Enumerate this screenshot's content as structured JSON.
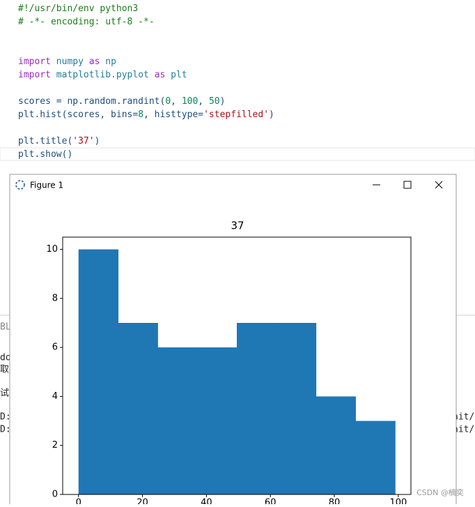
{
  "code": {
    "lines": [
      [
        {
          "text": "#!/usr/bin/env python3",
          "color": "#1a801a"
        }
      ],
      [
        {
          "text": "# -*- encoding: utf-8 -*-",
          "color": "#1a801a"
        }
      ],
      [],
      [],
      [
        {
          "text": "import",
          "color": "#9a2bc4"
        },
        {
          "text": " numpy ",
          "color": "#267f99"
        },
        {
          "text": "as",
          "color": "#9a2bc4"
        },
        {
          "text": " np",
          "color": "#267f99"
        }
      ],
      [
        {
          "text": "import",
          "color": "#9a2bc4"
        },
        {
          "text": " matplotlib.pyplot ",
          "color": "#267f99"
        },
        {
          "text": "as",
          "color": "#9a2bc4"
        },
        {
          "text": " plt",
          "color": "#267f99"
        }
      ],
      [],
      [
        {
          "text": "scores = np.random.randint(",
          "color": "#1f4f7a"
        },
        {
          "text": "0",
          "color": "#098658"
        },
        {
          "text": ", ",
          "color": "#1f4f7a"
        },
        {
          "text": "100",
          "color": "#098658"
        },
        {
          "text": ", ",
          "color": "#1f4f7a"
        },
        {
          "text": "50",
          "color": "#098658"
        },
        {
          "text": ")",
          "color": "#1f4f7a"
        }
      ],
      [
        {
          "text": "plt.hist(scores, bins=",
          "color": "#1f4f7a"
        },
        {
          "text": "8",
          "color": "#098658"
        },
        {
          "text": ", histtype=",
          "color": "#1f4f7a"
        },
        {
          "text": "'stepfilled'",
          "color": "#a31515"
        },
        {
          "text": ")",
          "color": "#1f4f7a"
        }
      ],
      [],
      [
        {
          "text": "plt.title(",
          "color": "#1f4f7a"
        },
        {
          "text": "'37'",
          "color": "#a31515"
        },
        {
          "text": ")",
          "color": "#1f4f7a"
        }
      ],
      [
        {
          "text": "plt.show()",
          "color": "#1f4f7a"
        }
      ]
    ]
  },
  "background_fragments": [
    "BLE",
    "do",
    "取",
    "试",
    "D:",
    "D:",
    "nit/p",
    "nit/p"
  ],
  "window": {
    "title": "Figure 1"
  },
  "watermark": "CSDN @楠奕",
  "chart_data": {
    "type": "histogram",
    "title": "37",
    "bins": [
      0,
      12.375,
      24.75,
      37.125,
      49.5,
      61.875,
      74.25,
      86.625,
      99
    ],
    "values": [
      10,
      7,
      6,
      6,
      7,
      7,
      4,
      3
    ],
    "color": "#1f77b4",
    "xlim": [
      -4.95,
      103.95
    ],
    "xticks": [
      0,
      20,
      40,
      60,
      80,
      100
    ],
    "ylim": [
      0,
      10.5
    ],
    "yticks": [
      0,
      2,
      4,
      6,
      8,
      10
    ]
  }
}
